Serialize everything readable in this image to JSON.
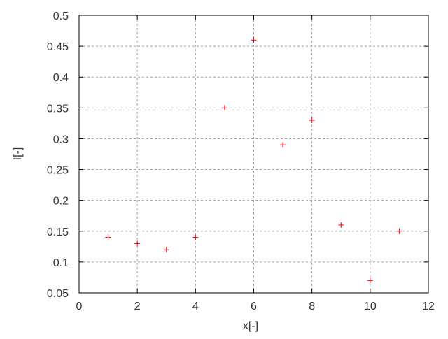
{
  "chart_data": {
    "type": "scatter",
    "title": "",
    "xlabel": "x[-]",
    "ylabel": "I[-]",
    "xlim": [
      0,
      12
    ],
    "ylim": [
      0.05,
      0.5
    ],
    "xticks": [
      "0",
      "2",
      "4",
      "6",
      "8",
      "10",
      "12"
    ],
    "yticks": [
      "0.05",
      "0.1",
      "0.15",
      "0.2",
      "0.25",
      "0.3",
      "0.35",
      "0.4",
      "0.45",
      "0.5"
    ],
    "grid": true,
    "marker": "plus",
    "color": "#ff0000",
    "series": [
      {
        "x": [
          1,
          2,
          3,
          4,
          5,
          6,
          7,
          8,
          9,
          10,
          11
        ],
        "y": [
          0.14,
          0.13,
          0.12,
          0.14,
          0.35,
          0.46,
          0.29,
          0.33,
          0.16,
          0.07,
          0.15
        ]
      }
    ]
  }
}
